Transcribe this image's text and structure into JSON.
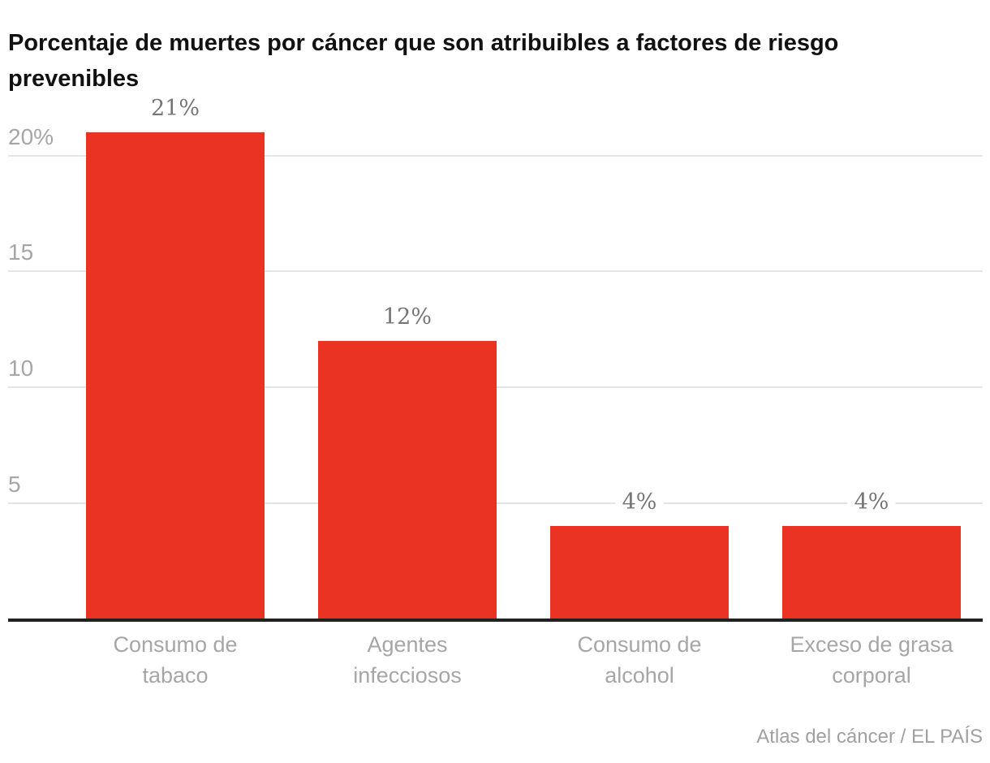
{
  "chart_data": {
    "type": "bar",
    "title": "Porcentaje de muertes por cáncer que son atribuibles a factores de riesgo prevenibles",
    "title_lines": [
      "Porcentaje de muertes por cáncer que son atribuibles a factores de riesgo",
      "prevenibles"
    ],
    "categories": [
      "Consumo de tabaco",
      "Agentes infecciosos",
      "Consumo de alcohol",
      "Exceso de grasa corporal"
    ],
    "category_lines": [
      [
        "Consumo de",
        "tabaco"
      ],
      [
        "Agentes",
        "infecciosos"
      ],
      [
        "Consumo de",
        "alcohol"
      ],
      [
        "Exceso de grasa",
        "corporal"
      ]
    ],
    "values": [
      21,
      12,
      4,
      4
    ],
    "value_labels": [
      "21%",
      "12%",
      "4%",
      "4%"
    ],
    "unit": "%",
    "y_ticks": [
      {
        "label": "20%",
        "value": 20
      },
      {
        "label": "15",
        "value": 15
      },
      {
        "label": "10",
        "value": 10
      },
      {
        "label": "5",
        "value": 5
      }
    ],
    "ylim": [
      0,
      21
    ],
    "grid": true,
    "legend": false,
    "xlabel": "",
    "ylabel": "",
    "source": "Atlas del cáncer / EL PAÍS",
    "colors": {
      "bar": "#ea3323",
      "grid": "#e4e4e4",
      "axis_line": "#212121",
      "title_text": "#111111",
      "tick_text": "#a6a6a6",
      "value_text": "#757575",
      "category_text": "#a6a6a6",
      "source_text": "#a0a0a0",
      "background": "#ffffff"
    }
  }
}
